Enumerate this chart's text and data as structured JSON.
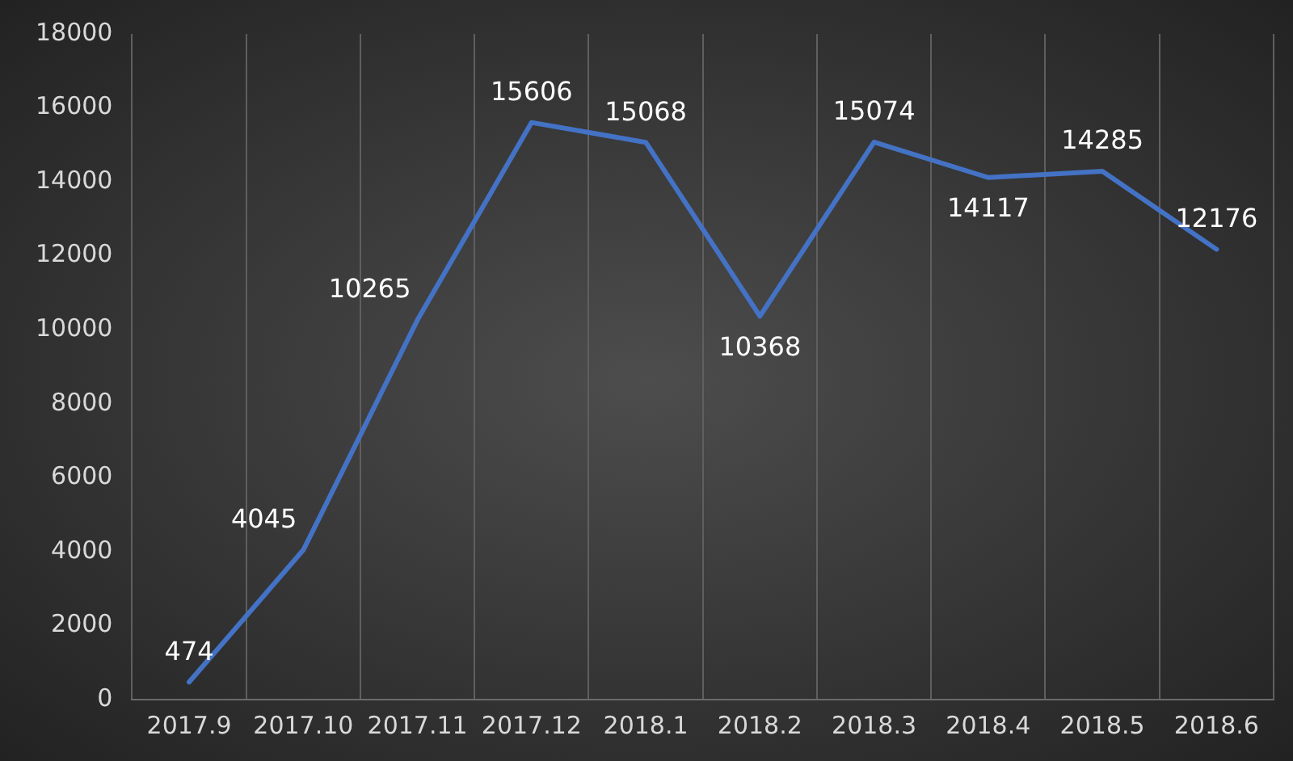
{
  "chart_data": {
    "type": "line",
    "categories": [
      "2017.9",
      "2017.10",
      "2017.11",
      "2017.12",
      "2018.1",
      "2018.2",
      "2018.3",
      "2018.4",
      "2018.5",
      "2018.6"
    ],
    "series": [
      {
        "color": "#4472c4",
        "values": [
          474,
          4045,
          10265,
          15606,
          15068,
          10368,
          15074,
          14117,
          14285,
          12176
        ]
      }
    ],
    "ylim": [
      0,
      18000
    ],
    "yticks": [
      0,
      2000,
      4000,
      6000,
      8000,
      10000,
      12000,
      14000,
      16000,
      18000
    ],
    "grid": "x",
    "legend": false,
    "marker": "none",
    "line_style": "solid",
    "data_labels": true
  }
}
